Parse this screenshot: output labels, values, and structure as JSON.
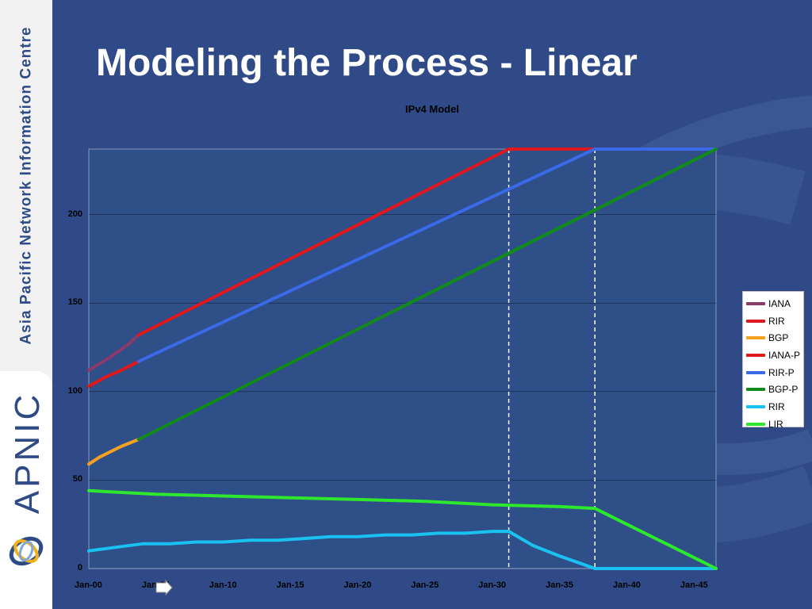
{
  "slide": {
    "title": "Modeling the Process - Linear",
    "org_name": "Asia Pacific Network Information Centre",
    "brand": "APNIC"
  },
  "colors": {
    "slide_bg": "#2f4a86",
    "sidebar_bg": "#f2f2f2",
    "plot_bg": "#2e4f88",
    "IANA": "#8b3a6b",
    "RIR": "#e0181b",
    "BGP": "#f4a020",
    "IANA-P": "#e0181b",
    "RIR-P": "#3a6ae8",
    "BGP-P": "#118a1a",
    "RIR2": "#19c2f0",
    "LIR": "#2ee82e"
  },
  "icons": [
    "apnic-logo-icon",
    "arrow-right-icon"
  ],
  "chart_data": {
    "type": "line",
    "title": "IPv4 Model",
    "xlabel": "",
    "ylabel": "",
    "ylim": [
      0,
      237
    ],
    "yticks": [
      0,
      50,
      100,
      150,
      200
    ],
    "xlim": [
      2000,
      2046.6
    ],
    "xticks": [
      {
        "x": 2000,
        "label": "Jan-00"
      },
      {
        "x": 2005,
        "label": "Jan-05"
      },
      {
        "x": 2010,
        "label": "Jan-10"
      },
      {
        "x": 2015,
        "label": "Jan-15"
      },
      {
        "x": 2020,
        "label": "Jan-20"
      },
      {
        "x": 2025,
        "label": "Jan-25"
      },
      {
        "x": 2030,
        "label": "Jan-30"
      },
      {
        "x": 2035,
        "label": "Jan-35"
      },
      {
        "x": 2040,
        "label": "Jan-40"
      },
      {
        "x": 2045,
        "label": "Jan-45"
      }
    ],
    "grid": true,
    "legend_position": "right",
    "vlines": [
      2031.2,
      2037.6
    ],
    "series": [
      {
        "name": "IANA",
        "x": [
          2000,
          2001.5,
          2003,
          2003.7
        ],
        "values": [
          112,
          119,
          127,
          132
        ]
      },
      {
        "name": "RIR",
        "x": [
          2000,
          2001.2,
          2002.4,
          2003.7
        ],
        "values": [
          103,
          108,
          112,
          117
        ]
      },
      {
        "name": "BGP",
        "x": [
          2000,
          2000.8,
          2001.6,
          2002.4,
          2003.7
        ],
        "values": [
          59,
          63,
          66,
          69,
          73
        ]
      },
      {
        "name": "IANA-P",
        "x": [
          2003.7,
          2031.2,
          2037.6
        ],
        "values": [
          132,
          237,
          237
        ]
      },
      {
        "name": "RIR-P",
        "x": [
          2003.7,
          2037.6,
          2046.6
        ],
        "values": [
          117,
          237,
          237
        ]
      },
      {
        "name": "BGP-P",
        "x": [
          2003.7,
          2046.6
        ],
        "values": [
          73,
          237
        ]
      },
      {
        "name": "RIR",
        "x": [
          2000,
          2002,
          2004,
          2006,
          2008,
          2010,
          2012,
          2014,
          2016,
          2018,
          2020,
          2022,
          2024,
          2026,
          2028,
          2030,
          2031.2,
          2033,
          2035,
          2036.5,
          2037.6,
          2046.6
        ],
        "values": [
          10,
          12,
          14,
          14,
          15,
          15,
          16,
          16,
          17,
          18,
          18,
          19,
          19,
          20,
          20,
          21,
          21,
          13,
          7,
          3,
          0,
          0
        ]
      },
      {
        "name": "LIR",
        "x": [
          2000,
          2005,
          2010,
          2015,
          2020,
          2025,
          2030,
          2035,
          2037.6,
          2046.6
        ],
        "values": [
          44,
          42,
          41,
          40,
          39,
          38,
          36,
          35,
          34,
          0
        ]
      }
    ]
  }
}
